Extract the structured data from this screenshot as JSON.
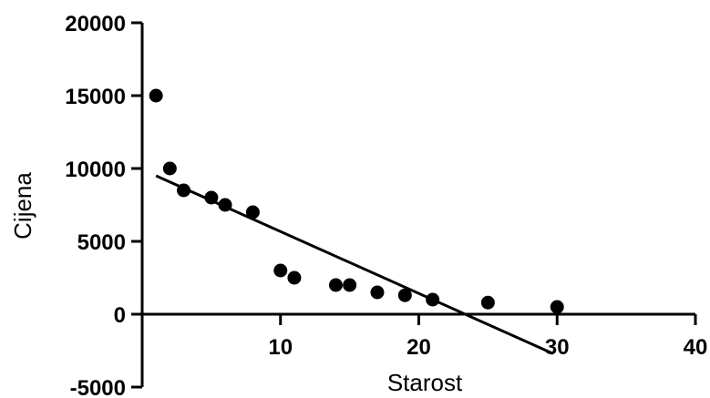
{
  "chart_data": {
    "type": "scatter",
    "xlabel": "Starost",
    "ylabel": "Cijena",
    "xlim": [
      0,
      40
    ],
    "ylim": [
      -5000,
      20000
    ],
    "x_ticks": [
      10,
      20,
      30,
      40
    ],
    "x_tick_labels": [
      "10",
      "20",
      "30",
      "40"
    ],
    "y_ticks": [
      -5000,
      0,
      5000,
      10000,
      15000,
      20000
    ],
    "y_tick_labels": [
      "-5000",
      "0",
      "5000",
      "10000",
      "15000",
      "20000"
    ],
    "grid": false,
    "colors": {
      "points": "#000000",
      "line": "#000000",
      "axis": "#000000"
    },
    "series": [
      {
        "type": "scatter",
        "x": [
          1,
          2,
          3,
          5,
          6,
          8,
          10,
          11,
          14,
          15,
          17,
          19,
          21,
          25,
          30
        ],
        "y": [
          15000,
          10000,
          8500,
          8000,
          7500,
          7000,
          3000,
          2500,
          2000,
          2000,
          1500,
          1300,
          1000,
          800,
          500
        ]
      },
      {
        "type": "line",
        "x": [
          1,
          29.7
        ],
        "y": [
          9500,
          -2700
        ]
      }
    ]
  }
}
